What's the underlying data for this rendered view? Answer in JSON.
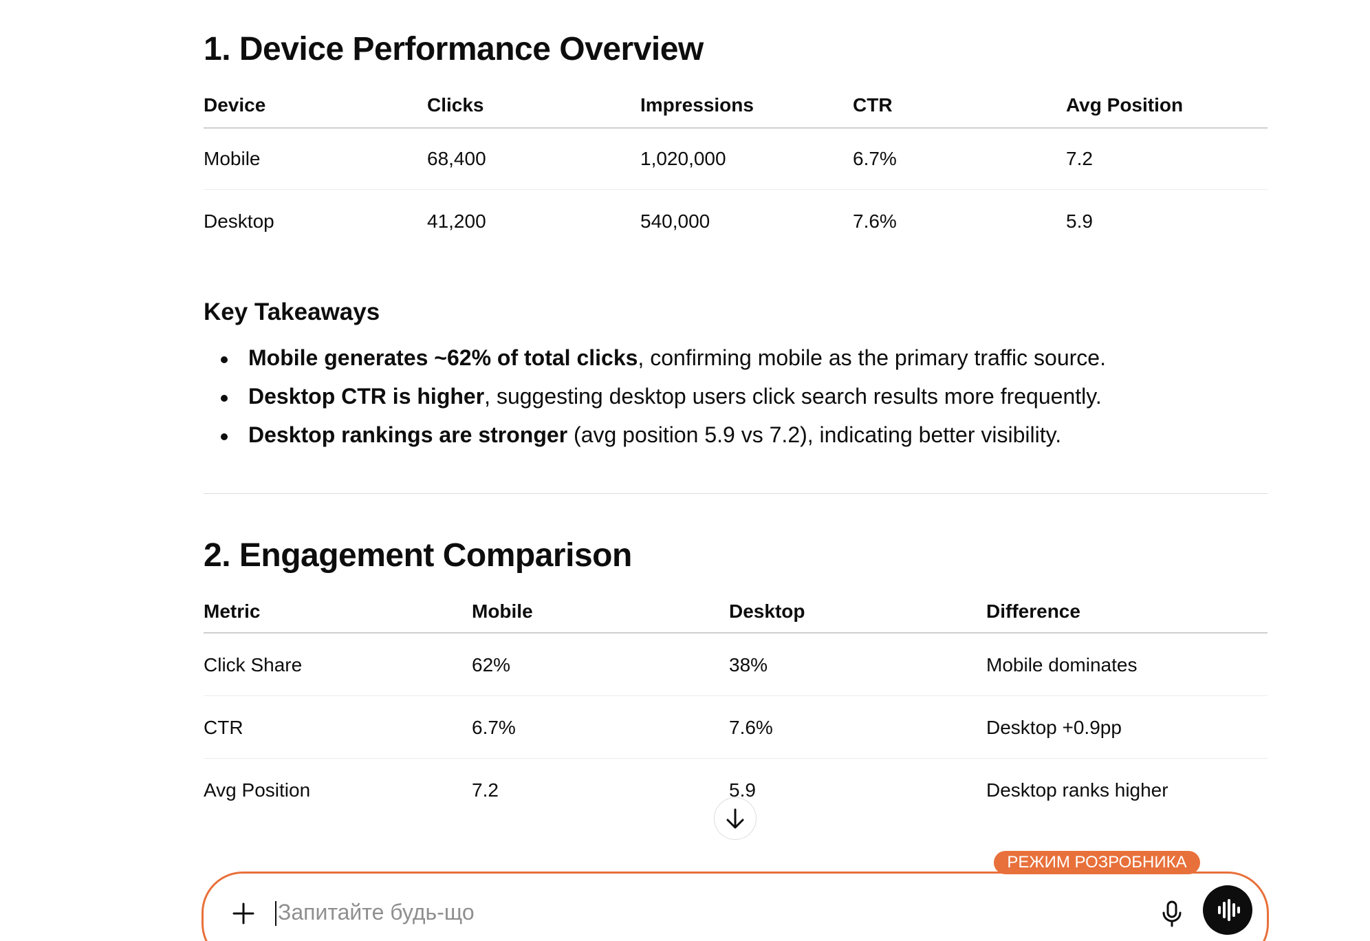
{
  "section1": {
    "title": "1. Device Performance Overview",
    "table": {
      "header": [
        "Device",
        "Clicks",
        "Impressions",
        "CTR",
        "Avg Position"
      ],
      "rows": [
        [
          "Mobile",
          "68,400",
          "1,020,000",
          "6.7%",
          "7.2"
        ],
        [
          "Desktop",
          "41,200",
          "540,000",
          "7.6%",
          "5.9"
        ]
      ]
    }
  },
  "takeaways": {
    "title": "Key Takeaways",
    "items": [
      {
        "bold": "Mobile generates ~62% of total clicks",
        "text": ", confirming mobile as the primary traffic source."
      },
      {
        "bold": "Desktop CTR is higher",
        "text": ", suggesting desktop users click search results more frequently."
      },
      {
        "bold": "Desktop rankings are stronger",
        "text": " (avg position 5.9 vs 7.2), indicating better visibility."
      }
    ]
  },
  "section2": {
    "title": "2. Engagement Comparison",
    "table": {
      "header": [
        "Metric",
        "Mobile",
        "Desktop",
        "Difference"
      ],
      "rows": [
        [
          "Click Share",
          "62%",
          "38%",
          "Mobile dominates"
        ],
        [
          "CTR",
          "6.7%",
          "7.6%",
          "Desktop +0.9pp"
        ],
        [
          "Avg Position",
          "7.2",
          "5.9",
          "Desktop ranks higher"
        ]
      ]
    }
  },
  "composer": {
    "badge": "РЕЖИМ РОЗРОБНИКА",
    "placeholder": "Запитайте будь-що"
  }
}
